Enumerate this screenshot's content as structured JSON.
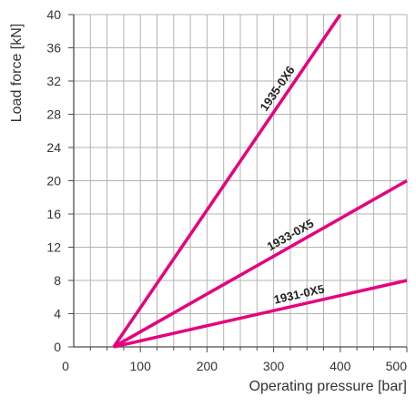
{
  "chart_data": {
    "type": "line",
    "title": "",
    "xlabel": "Operating pressure [bar]",
    "ylabel": "Load force [kN]",
    "xlim": [
      0,
      500
    ],
    "ylim": [
      0,
      40
    ],
    "x_ticks": [
      0,
      100,
      200,
      300,
      400,
      500
    ],
    "y_ticks": [
      0,
      4,
      8,
      12,
      16,
      20,
      24,
      28,
      32,
      36,
      40
    ],
    "x_tick_labels": [
      "0",
      "100",
      "200",
      "300",
      "400",
      "500"
    ],
    "y_tick_labels": [
      "0",
      "4",
      "8",
      "12",
      "16",
      "20",
      "24",
      "28",
      "32",
      "36",
      "40"
    ],
    "grid": true,
    "line_color": "#e6007e",
    "grid_color": "#b3b3b3",
    "series": [
      {
        "name": "1935-0X6",
        "x": [
          60,
          400
        ],
        "y": [
          0,
          40
        ]
      },
      {
        "name": "1933-0X5",
        "x": [
          60,
          500
        ],
        "y": [
          0,
          20
        ]
      },
      {
        "name": "1931-0X5",
        "x": [
          60,
          500
        ],
        "y": [
          0,
          8
        ]
      }
    ]
  }
}
